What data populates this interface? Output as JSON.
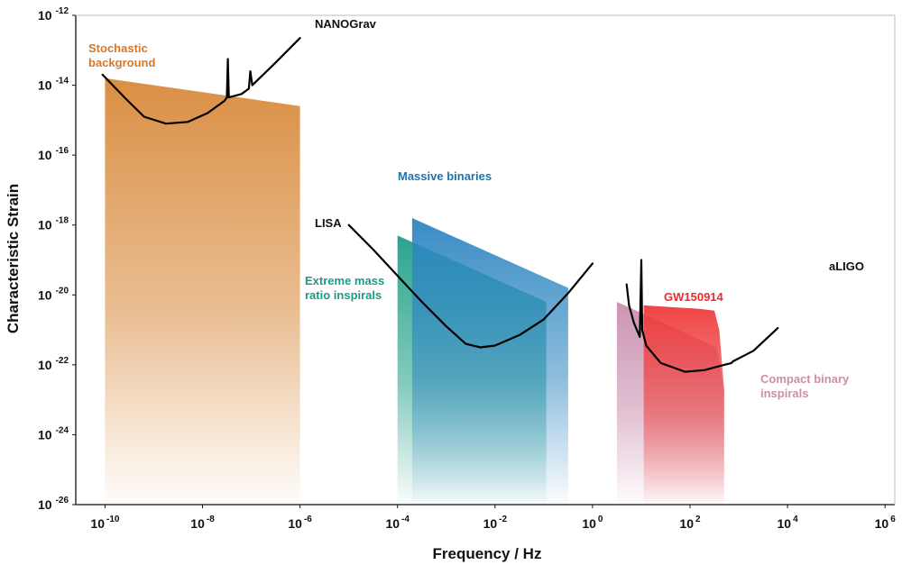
{
  "chart_data": {
    "type": "area",
    "xlabel": "Frequency / Hz",
    "ylabel": "Characteristic Strain",
    "x_scale": "log",
    "y_scale": "log",
    "x_tick_labels": [
      {
        "base": "10",
        "exp": "-10"
      },
      {
        "base": "10",
        "exp": "-8"
      },
      {
        "base": "10",
        "exp": "-6"
      },
      {
        "base": "10",
        "exp": "-4"
      },
      {
        "base": "10",
        "exp": "-2"
      },
      {
        "base": "10",
        "exp": "0"
      },
      {
        "base": "10",
        "exp": "2"
      },
      {
        "base": "10",
        "exp": "4"
      },
      {
        "base": "10",
        "exp": "6"
      }
    ],
    "y_tick_labels": [
      {
        "base": "10",
        "exp": "-12"
      },
      {
        "base": "10",
        "exp": "-14"
      },
      {
        "base": "10",
        "exp": "-16"
      },
      {
        "base": "10",
        "exp": "-18"
      },
      {
        "base": "10",
        "exp": "-20"
      },
      {
        "base": "10",
        "exp": "-22"
      },
      {
        "base": "10",
        "exp": "-24"
      },
      {
        "base": "10",
        "exp": "-26"
      }
    ],
    "x_exp_range": [
      -10.6,
      6.2
    ],
    "y_exp_range": [
      -26,
      -12
    ],
    "regions": [
      {
        "label": "Stochastic background",
        "label_lines": [
          "Stochastic",
          "background"
        ],
        "color": "#d8893a",
        "polygon": [
          [
            -10,
            -13.8
          ],
          [
            -6,
            -14.6
          ],
          [
            -6,
            -26
          ],
          [
            -10,
            -26
          ]
        ]
      },
      {
        "label": "Extreme mass ratio inspirals",
        "label_lines": [
          "Extreme mass",
          "ratio inspirals"
        ],
        "color": "#1fa088",
        "polygon": [
          [
            -4,
            -18.3
          ],
          [
            -0.95,
            -20.2
          ],
          [
            -0.95,
            -26
          ],
          [
            -4,
            -26
          ]
        ]
      },
      {
        "label": "Massive binaries",
        "label_lines": [
          "Massive binaries"
        ],
        "color": "#2e86c1",
        "polygon": [
          [
            -3.7,
            -17.8
          ],
          [
            -0.5,
            -19.8
          ],
          [
            -0.5,
            -26
          ],
          [
            -3.7,
            -26
          ]
        ]
      },
      {
        "label": "Compact binary inspirals",
        "label_lines": [
          "Compact binary",
          "inspirals"
        ],
        "color": "#c98fae",
        "polygon": [
          [
            0.5,
            -20.2
          ],
          [
            2.55,
            -21.5
          ],
          [
            2.7,
            -22.7
          ],
          [
            2.7,
            -26
          ],
          [
            0.5,
            -26
          ]
        ]
      },
      {
        "label": "GW150914",
        "label_lines": [
          "GW150914"
        ],
        "color": "#ee3b3b",
        "polygon": [
          [
            1.05,
            -20.3
          ],
          [
            2.2,
            -20.4
          ],
          [
            2.5,
            -20.45
          ],
          [
            2.6,
            -21.0
          ],
          [
            2.7,
            -22.7
          ],
          [
            2.7,
            -26
          ],
          [
            1.05,
            -26
          ]
        ]
      }
    ],
    "curves": [
      {
        "label": "NANOGrav",
        "color": "#000000",
        "points": [
          [
            -10.05,
            -13.7
          ],
          [
            -9.6,
            -14.35
          ],
          [
            -9.2,
            -14.9
          ],
          [
            -8.75,
            -15.1
          ],
          [
            -8.3,
            -15.05
          ],
          [
            -7.9,
            -14.8
          ],
          [
            -7.55,
            -14.45
          ],
          [
            -7.5,
            -14.35
          ],
          [
            -7.48,
            -13.25
          ],
          [
            -7.46,
            -14.35
          ],
          [
            -7.2,
            -14.25
          ],
          [
            -7.05,
            -14.1
          ],
          [
            -7.02,
            -13.6
          ],
          [
            -6.98,
            -14.0
          ],
          [
            -6.5,
            -13.35
          ],
          [
            -6.0,
            -12.65
          ]
        ]
      },
      {
        "label": "LISA",
        "color": "#000000",
        "points": [
          [
            -5.0,
            -18.0
          ],
          [
            -4.5,
            -18.7
          ],
          [
            -4.0,
            -19.45
          ],
          [
            -3.5,
            -20.2
          ],
          [
            -3.0,
            -20.9
          ],
          [
            -2.6,
            -21.4
          ],
          [
            -2.3,
            -21.5
          ],
          [
            -2.0,
            -21.45
          ],
          [
            -1.5,
            -21.15
          ],
          [
            -1.0,
            -20.7
          ],
          [
            -0.5,
            -19.95
          ],
          [
            0.0,
            -19.1
          ]
        ]
      },
      {
        "label": "aLIGO",
        "color": "#000000",
        "points": [
          [
            0.7,
            -19.7
          ],
          [
            0.75,
            -20.3
          ],
          [
            0.85,
            -20.8
          ],
          [
            0.97,
            -21.2
          ],
          [
            1.0,
            -19.0
          ],
          [
            1.02,
            -21.0
          ],
          [
            1.1,
            -21.45
          ],
          [
            1.4,
            -21.95
          ],
          [
            1.9,
            -22.2
          ],
          [
            2.3,
            -22.15
          ],
          [
            2.7,
            -22.0
          ],
          [
            2.85,
            -21.95
          ],
          [
            2.88,
            -21.9
          ],
          [
            3.3,
            -21.6
          ],
          [
            3.8,
            -20.95
          ]
        ]
      }
    ],
    "annotations": [
      {
        "lines": [
          "NANOGrav"
        ],
        "color": "#111111"
      },
      {
        "lines": [
          "Stochastic",
          "background"
        ],
        "color": "#d6782c"
      },
      {
        "lines": [
          "Massive binaries"
        ],
        "color": "#1b75ad"
      },
      {
        "lines": [
          "LISA"
        ],
        "color": "#111111"
      },
      {
        "lines": [
          "Extreme mass",
          "ratio inspirals"
        ],
        "color": "#1f9a82"
      },
      {
        "lines": [
          "aLIGO"
        ],
        "color": "#111111"
      },
      {
        "lines": [
          "GW150914"
        ],
        "color": "#ee2a2a"
      },
      {
        "lines": [
          "Compact binary",
          "inspirals"
        ],
        "color": "#cc8eaa"
      }
    ]
  }
}
